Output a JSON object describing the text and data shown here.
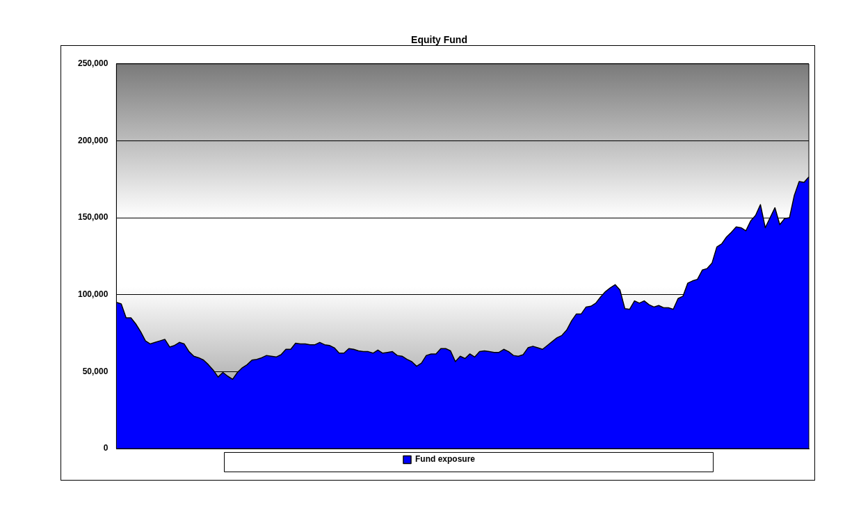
{
  "chart_data": {
    "type": "area",
    "title": "Equity Fund",
    "categories": [
      null,
      null,
      null,
      null,
      null,
      null,
      null,
      null,
      null,
      null,
      null,
      null,
      null,
      null,
      null,
      null,
      null,
      null,
      null,
      null,
      null,
      null,
      null,
      null,
      null,
      null,
      null,
      null,
      null,
      null,
      null,
      null,
      null,
      null,
      null,
      null,
      null,
      null,
      null,
      null,
      null,
      null,
      null,
      null,
      null,
      null,
      null,
      null,
      null,
      null,
      null,
      null,
      null,
      null,
      null,
      null,
      null,
      null,
      null,
      null,
      null,
      null,
      null,
      null,
      null,
      null,
      null,
      null,
      null,
      null,
      null,
      null,
      null,
      null,
      null,
      null,
      null,
      null,
      null,
      null,
      null,
      null,
      null,
      null,
      null,
      null,
      null,
      null,
      null,
      null,
      null,
      null,
      null,
      null,
      null,
      null,
      null,
      null,
      null,
      null,
      null,
      null,
      null,
      null,
      null,
      null,
      null,
      null,
      null,
      null,
      null,
      null,
      null,
      null,
      null,
      null,
      null,
      null,
      null,
      null,
      null,
      null,
      null,
      null,
      null,
      null,
      null,
      null,
      null,
      null,
      null,
      null,
      null,
      null,
      null,
      null,
      null,
      null,
      null,
      null,
      null,
      null,
      null,
      null
    ],
    "series": [
      {
        "name": "Fund exposure",
        "color": "#0000ff",
        "values": [
          95000,
          94000,
          85000,
          85000,
          81000,
          76000,
          70000,
          68000,
          69000,
          70000,
          71000,
          66000,
          67000,
          69000,
          68000,
          63000,
          60000,
          59000,
          57500,
          54500,
          51000,
          46500,
          49500,
          47000,
          45000,
          49500,
          52500,
          54500,
          57500,
          58000,
          59000,
          60500,
          60000,
          59500,
          61000,
          64500,
          64500,
          68500,
          68000,
          68000,
          67500,
          67500,
          69000,
          67500,
          67000,
          65500,
          62000,
          62000,
          65000,
          64500,
          63500,
          63000,
          63000,
          62000,
          64000,
          62000,
          62500,
          63000,
          60500,
          60000,
          58000,
          56500,
          53500,
          55500,
          60500,
          61500,
          61500,
          65000,
          65000,
          63500,
          56500,
          60000,
          58500,
          61500,
          59500,
          63000,
          63500,
          63000,
          62500,
          62500,
          64500,
          63000,
          60500,
          60000,
          61000,
          65500,
          66500,
          65500,
          64500,
          67000,
          69500,
          72000,
          73500,
          77000,
          83000,
          87500,
          87500,
          92000,
          92500,
          94500,
          98500,
          102000,
          104500,
          106500,
          103000,
          91000,
          90500,
          96000,
          94500,
          96000,
          93500,
          92000,
          93000,
          91500,
          91500,
          90500,
          97500,
          99000,
          107500,
          109000,
          110000,
          116000,
          117000,
          120500,
          131000,
          133000,
          137500,
          140500,
          144000,
          143500,
          141500,
          148000,
          151500,
          158500,
          143500,
          150000,
          156500,
          145500,
          149500,
          150000,
          164500,
          173500,
          173000,
          176500
        ]
      }
    ],
    "ylim": [
      0,
      250000
    ],
    "yticks": [
      0,
      {
        "value": 50000,
        "label": "50,000"
      },
      {
        "value": 100000,
        "label": "100,000"
      },
      {
        "value": 150000,
        "label": "150,000"
      },
      {
        "value": 200000,
        "label": "200,000"
      },
      {
        "value": 250000,
        "label": "250,000"
      }
    ],
    "grid": "y",
    "legend": "bottom",
    "tick_labels": "y"
  }
}
